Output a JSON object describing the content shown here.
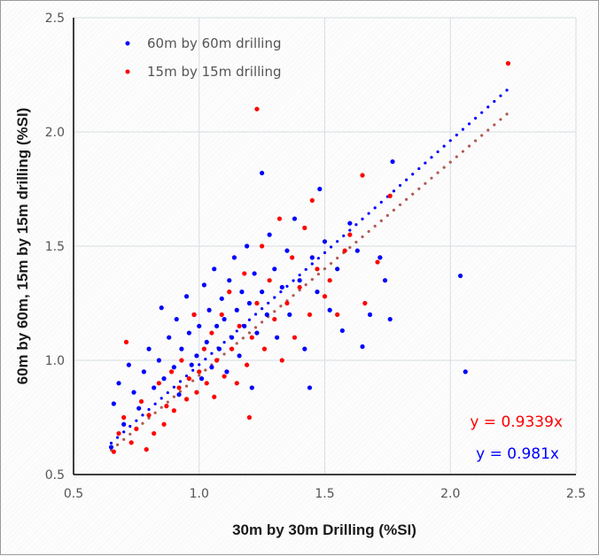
{
  "chart_data": {
    "type": "scatter",
    "title": "",
    "xlabel": "30m by 30m Drilling (%SI)",
    "ylabel": "60m by 60m, 15m by 15m drilling (%SI)",
    "xlim": [
      0.5,
      2.5
    ],
    "ylim": [
      0.5,
      2.5
    ],
    "xticks": [
      "0.5",
      "1.0",
      "1.5",
      "2.0",
      "2.5"
    ],
    "yticks": [
      "0.5",
      "1.0",
      "1.5",
      "2.0",
      "2.5"
    ],
    "grid": true,
    "legend_position": "top-left",
    "series": [
      {
        "name": "60m by 60m drilling",
        "color": "#0000ff",
        "trendline": {
          "equation": "y = 0.981x",
          "slope": 0.981,
          "x_range": [
            0.65,
            2.23
          ],
          "color": "#0000ff"
        },
        "points": [
          [
            0.65,
            0.62
          ],
          [
            0.66,
            0.81
          ],
          [
            0.68,
            0.9
          ],
          [
            0.7,
            0.72
          ],
          [
            0.72,
            0.98
          ],
          [
            0.74,
            0.86
          ],
          [
            0.76,
            0.79
          ],
          [
            0.78,
            0.95
          ],
          [
            0.8,
            1.05
          ],
          [
            0.82,
            0.88
          ],
          [
            0.84,
            1.0
          ],
          [
            0.85,
            1.23
          ],
          [
            0.86,
            0.92
          ],
          [
            0.88,
            1.1
          ],
          [
            0.9,
            0.97
          ],
          [
            0.91,
            1.18
          ],
          [
            0.92,
            0.85
          ],
          [
            0.93,
            1.05
          ],
          [
            0.95,
            1.28
          ],
          [
            0.96,
            1.12
          ],
          [
            0.97,
            0.98
          ],
          [
            0.98,
            1.2
          ],
          [
            0.99,
            1.02
          ],
          [
            1.0,
            1.15
          ],
          [
            1.01,
            0.92
          ],
          [
            1.02,
            1.33
          ],
          [
            1.03,
            1.08
          ],
          [
            1.04,
            1.22
          ],
          [
            1.05,
            0.97
          ],
          [
            1.06,
            1.4
          ],
          [
            1.07,
            1.15
          ],
          [
            1.08,
            1.05
          ],
          [
            1.09,
            1.27
          ],
          [
            1.1,
            1.18
          ],
          [
            1.11,
            0.95
          ],
          [
            1.12,
            1.35
          ],
          [
            1.13,
            1.1
          ],
          [
            1.14,
            1.45
          ],
          [
            1.15,
            1.22
          ],
          [
            1.16,
            1.02
          ],
          [
            1.17,
            1.3
          ],
          [
            1.18,
            1.15
          ],
          [
            1.19,
            1.5
          ],
          [
            1.2,
            1.25
          ],
          [
            1.21,
            0.88
          ],
          [
            1.22,
            1.38
          ],
          [
            1.23,
            1.12
          ],
          [
            1.25,
            1.82
          ],
          [
            1.25,
            1.3
          ],
          [
            1.27,
            1.2
          ],
          [
            1.28,
            1.55
          ],
          [
            1.3,
            1.4
          ],
          [
            1.31,
            1.1
          ],
          [
            1.33,
            1.32
          ],
          [
            1.35,
            1.48
          ],
          [
            1.36,
            1.2
          ],
          [
            1.38,
            1.62
          ],
          [
            1.4,
            1.35
          ],
          [
            1.42,
            1.05
          ],
          [
            1.44,
            0.88
          ],
          [
            1.45,
            1.45
          ],
          [
            1.47,
            1.3
          ],
          [
            1.48,
            1.75
          ],
          [
            1.5,
            1.52
          ],
          [
            1.52,
            1.22
          ],
          [
            1.55,
            1.4
          ],
          [
            1.57,
            1.13
          ],
          [
            1.6,
            1.6
          ],
          [
            1.63,
            1.48
          ],
          [
            1.65,
            1.06
          ],
          [
            1.68,
            1.2
          ],
          [
            1.72,
            1.45
          ],
          [
            1.74,
            1.35
          ],
          [
            1.76,
            1.18
          ],
          [
            1.77,
            1.87
          ],
          [
            2.04,
            1.37
          ],
          [
            2.06,
            0.95
          ]
        ]
      },
      {
        "name": "15m by 15m drilling",
        "color": "#ff0000",
        "trendline": {
          "equation": "y = 0.9339x",
          "slope": 0.9339,
          "x_range": [
            0.65,
            2.23
          ],
          "color": "#b05a50"
        },
        "points": [
          [
            0.66,
            0.6
          ],
          [
            0.68,
            0.68
          ],
          [
            0.7,
            0.75
          ],
          [
            0.71,
            1.08
          ],
          [
            0.73,
            0.64
          ],
          [
            0.75,
            0.7
          ],
          [
            0.77,
            0.82
          ],
          [
            0.79,
            0.61
          ],
          [
            0.8,
            0.76
          ],
          [
            0.82,
            0.68
          ],
          [
            0.84,
            0.9
          ],
          [
            0.86,
            0.72
          ],
          [
            0.87,
            0.8
          ],
          [
            0.89,
            0.95
          ],
          [
            0.9,
            0.78
          ],
          [
            0.92,
            0.88
          ],
          [
            0.93,
            1.0
          ],
          [
            0.95,
            0.83
          ],
          [
            0.96,
            0.92
          ],
          [
            0.98,
            1.2
          ],
          [
            0.99,
            0.86
          ],
          [
            1.0,
            0.95
          ],
          [
            1.02,
            1.05
          ],
          [
            1.03,
            0.9
          ],
          [
            1.05,
            1.12
          ],
          [
            1.06,
            0.84
          ],
          [
            1.07,
            1.0
          ],
          [
            1.09,
            1.2
          ],
          [
            1.1,
            0.93
          ],
          [
            1.12,
            1.3
          ],
          [
            1.13,
            1.05
          ],
          [
            1.15,
            0.9
          ],
          [
            1.16,
            1.15
          ],
          [
            1.18,
            1.38
          ],
          [
            1.19,
            0.98
          ],
          [
            1.2,
            0.75
          ],
          [
            1.21,
            1.1
          ],
          [
            1.23,
            2.1
          ],
          [
            1.23,
            1.25
          ],
          [
            1.25,
            1.5
          ],
          [
            1.26,
            1.05
          ],
          [
            1.28,
            1.35
          ],
          [
            1.3,
            1.18
          ],
          [
            1.32,
            1.62
          ],
          [
            1.33,
            1.0
          ],
          [
            1.35,
            1.25
          ],
          [
            1.37,
            1.45
          ],
          [
            1.38,
            1.1
          ],
          [
            1.4,
            1.32
          ],
          [
            1.42,
            1.58
          ],
          [
            1.44,
            1.2
          ],
          [
            1.45,
            1.7
          ],
          [
            1.47,
            1.4
          ],
          [
            1.5,
            1.28
          ],
          [
            1.52,
            1.35
          ],
          [
            1.55,
            1.2
          ],
          [
            1.58,
            1.48
          ],
          [
            1.6,
            1.55
          ],
          [
            1.65,
            1.81
          ],
          [
            1.66,
            1.25
          ],
          [
            1.71,
            1.43
          ],
          [
            1.76,
            1.72
          ],
          [
            2.23,
            2.3
          ]
        ]
      }
    ]
  }
}
